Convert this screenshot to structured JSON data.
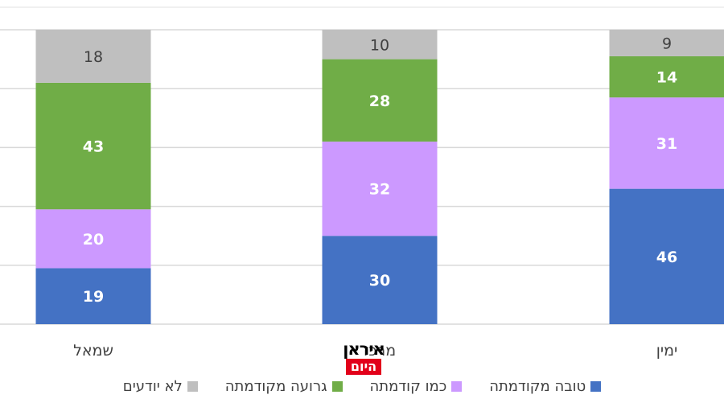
{
  "chart_data": {
    "type": "bar",
    "stacked": true,
    "categories": [
      "שמאל",
      "מרכז",
      "ימין"
    ],
    "series": [
      {
        "name": "טובה מקודמתה",
        "color": "#4472c4",
        "values": [
          19,
          30,
          46
        ]
      },
      {
        "name": "כמו קודמתה",
        "color": "#cc99ff",
        "values": [
          20,
          32,
          31
        ]
      },
      {
        "name": "גרועה מקודמתה",
        "color": "#70ad47",
        "values": [
          43,
          28,
          14
        ]
      },
      {
        "name": "לא יודעים",
        "color": "#bfbfbf",
        "values": [
          18,
          10,
          9
        ]
      }
    ],
    "ylim": [
      0,
      100
    ],
    "grid": true,
    "legend_position": "bottom"
  },
  "watermark": {
    "top": "איראן",
    "bottom": "היום"
  }
}
